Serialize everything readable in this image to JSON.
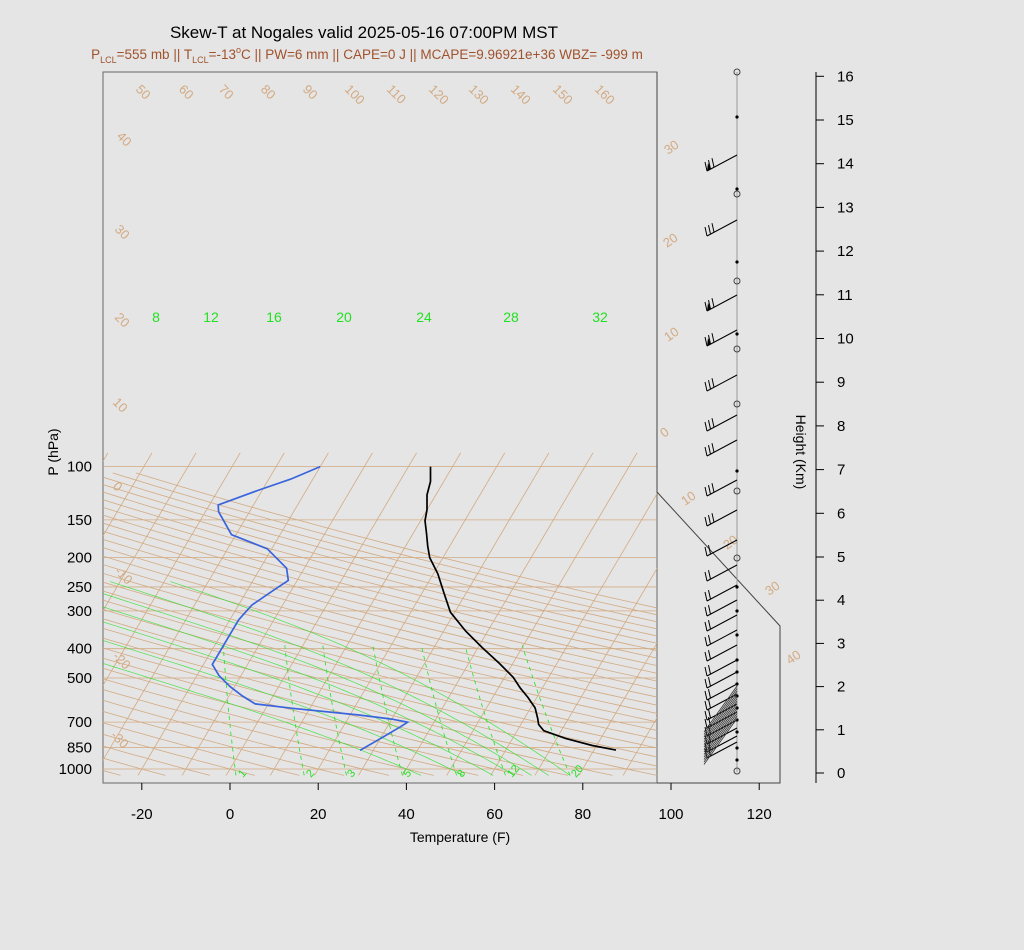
{
  "title": "Skew-T at Nogales valid 2025-05-16 07:00PM MST",
  "subtitle": {
    "p_pre": "P",
    "p_sub": "LCL",
    "p_post": "=555 mb || T",
    "t_sub": "LCL",
    "t_post": "=-13",
    "deg": "o",
    "rest": "C || PW=6 mm || CAPE=0 J || MCAPE=9.96921e+36 WBZ= -999 m"
  },
  "x_axis_title": "Temperature (F)",
  "y_axis_title": "P (hPa)",
  "y2_axis_title": "Height (Km)",
  "x_ticks": [
    "-20",
    "0",
    "20",
    "40",
    "60",
    "80",
    "100",
    "120"
  ],
  "y_ticks": [
    "100",
    "150",
    "200",
    "250",
    "300",
    "400",
    "500",
    "700",
    "850",
    "1000"
  ],
  "height_ticks": [
    "0",
    "1",
    "2",
    "3",
    "4",
    "5",
    "6",
    "7",
    "8",
    "9",
    "10",
    "11",
    "12",
    "13",
    "14",
    "15",
    "16"
  ],
  "isotherm_labels": [
    "50",
    "60",
    "70",
    "80",
    "90",
    "100",
    "110",
    "120",
    "130",
    "140",
    "150",
    "160",
    "40",
    "30",
    "20",
    "10",
    "0",
    "-10",
    "-20",
    "-30"
  ],
  "right_temp_labels": [
    "30",
    "20",
    "10",
    "0",
    "10",
    "20",
    "30",
    "40"
  ],
  "mixing_ratio_labels": [
    "8",
    "12",
    "16",
    "20",
    "24",
    "28",
    "32"
  ],
  "adiabat_labels": [
    "1",
    "2",
    "3",
    "5",
    "8",
    "12",
    "20"
  ],
  "colors": {
    "background": "#e5e5e5",
    "temperature": "#000000",
    "dewpoint": "#3a64dc",
    "isotherm": "#d2aa82",
    "moist_lines": "#22e022",
    "subtitle": "#a0522d"
  },
  "chart_data": {
    "type": "line",
    "title": "Skew-T at Nogales valid 2025-05-16 07:00PM MST",
    "xlabel": "Temperature (F)",
    "ylabel": "P (hPa)",
    "y2label": "Height (Km)",
    "xlim": [
      -28,
      125
    ],
    "ylim": [
      1030,
      100
    ],
    "y_scale": "log",
    "series": [
      {
        "points": [
          [
            85,
            866
          ],
          [
            79,
            836
          ],
          [
            72,
            792
          ],
          [
            66,
            747
          ],
          [
            64,
            712
          ],
          [
            63,
            680
          ],
          [
            61,
            628
          ],
          [
            58,
            580
          ],
          [
            55,
            540
          ],
          [
            52,
            498
          ],
          [
            47,
            448
          ],
          [
            41,
            397
          ],
          [
            35,
            350
          ],
          [
            29,
            303
          ],
          [
            25,
            262
          ],
          [
            21,
            226
          ],
          [
            17,
            200
          ],
          [
            15,
            183
          ],
          [
            13,
            166
          ],
          [
            11,
            151
          ],
          [
            10,
            139
          ],
          [
            8,
            124
          ],
          [
            7,
            112
          ],
          [
            5,
            100
          ]
        ]
      },
      {
        "points": [
          [
            27,
            868
          ],
          [
            30,
            794
          ],
          [
            33,
            725
          ],
          [
            34,
            700
          ],
          [
            30,
            684
          ],
          [
            22,
            663
          ],
          [
            6,
            630
          ],
          [
            -3,
            609
          ],
          [
            -7,
            573
          ],
          [
            -11,
            534
          ],
          [
            -15,
            491
          ],
          [
            -18,
            451
          ],
          [
            -18,
            413
          ],
          [
            -18,
            363
          ],
          [
            -18,
            321
          ],
          [
            -17,
            287
          ],
          [
            -14,
            256
          ],
          [
            -12,
            238
          ],
          [
            -14,
            217
          ],
          [
            -21,
            187
          ],
          [
            -31,
            168
          ],
          [
            -37,
            141
          ],
          [
            -38,
            134
          ],
          [
            -31,
            120
          ],
          [
            -25,
            110
          ],
          [
            -20,
            100
          ]
        ]
      }
    ]
  }
}
